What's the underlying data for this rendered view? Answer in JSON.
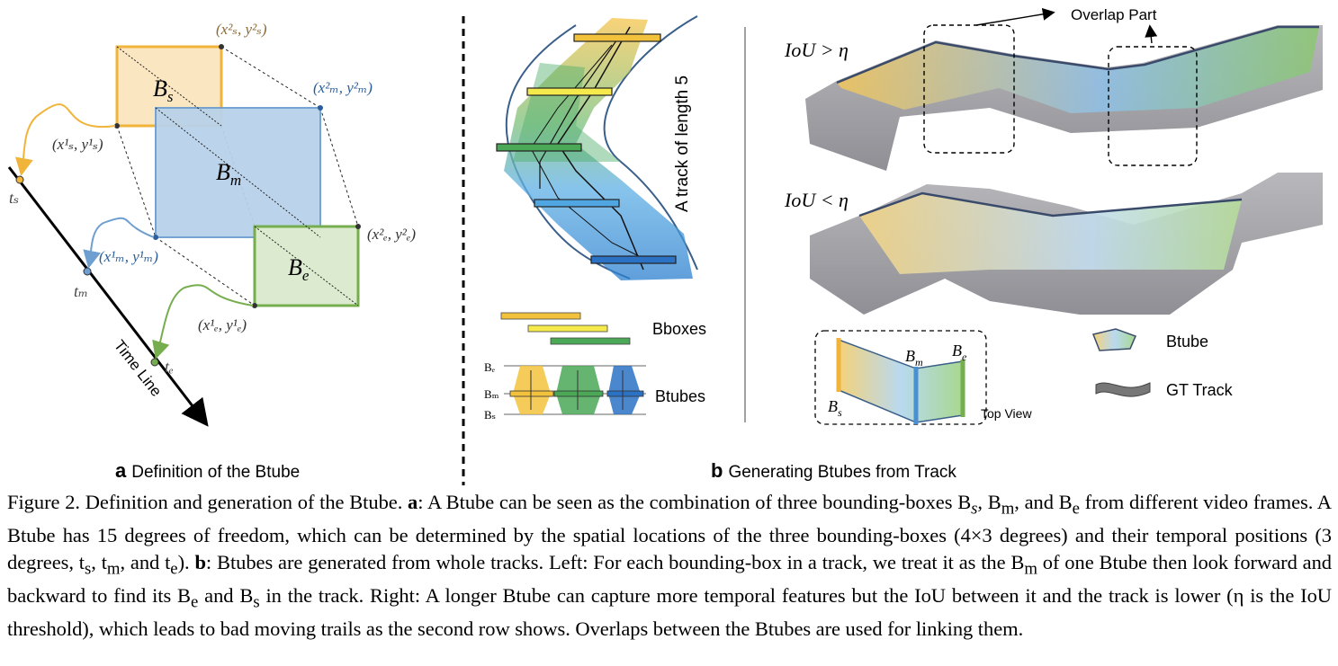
{
  "panel_a": {
    "caption_letter": "a",
    "caption_text": "Definition of the Btube",
    "box_labels": {
      "start": "B",
      "start_sub": "s",
      "mid": "B",
      "mid_sub": "m",
      "end": "B",
      "end_sub": "e"
    },
    "corner_labels": {
      "s2": "(x²ₛ, y²ₛ)",
      "s1": "(x¹ₛ, y¹ₛ)",
      "m2": "(x²ₘ, y²ₘ)",
      "m1": "(x¹ₘ, y¹ₘ)",
      "e2": "(x²ₑ, y²ₑ)",
      "e1": "(x¹ₑ, y¹ₑ)"
    },
    "time_labels": {
      "ts": "tₛ",
      "tm": "tₘ",
      "te": "tₑ"
    },
    "timeline_label": "Time Line",
    "colors": {
      "start": "#f0b43a",
      "mid": "#6e9fd0",
      "end": "#76ad4f"
    }
  },
  "panel_b": {
    "caption_letter": "b",
    "caption_text": "Generating Btubes from Track",
    "track_label": "A track of length 5",
    "bboxes_label": "Bboxes",
    "btubes_label": "Btubes",
    "btube_axis_labels": {
      "be": "Bₑ",
      "bm": "Bₘ",
      "bs": "Bₛ"
    },
    "overlap_label": "Overlap Part",
    "iou_greater": "IoU > η",
    "iou_less": "IoU < η",
    "topview_label": "Top View",
    "topview_box_labels": {
      "bs": "B",
      "bs_sub": "s",
      "bm": "B",
      "bm_sub": "m",
      "be": "B",
      "be_sub": "e"
    },
    "legend": [
      {
        "icon": "btube-icon",
        "label": "Btube"
      },
      {
        "icon": "gt-track-icon",
        "label": "GT Track"
      }
    ]
  },
  "caption": {
    "prefix": "Figure 2.",
    "part1": " Definition and generation of the Btube. ",
    "a_lab": "a",
    "part2": ": A Btube can be seen as the combination of three bounding-boxes B",
    "part2b": "s",
    "part2c": ", B",
    "part2d": "m",
    "part2e": ", and B",
    "part2f": "e",
    "part3": " from different video frames. A Btube has 15 degrees of freedom, which can be determined by the spatial locations of the three bounding-boxes (4×3 degrees) and their temporal positions (3 degrees, t",
    "part3b": "s",
    "part3c": ", t",
    "part3d": "m",
    "part3e": ", and t",
    "part3f": "e",
    "part3g": "). ",
    "b_lab": "b",
    "part4": ": Btubes are generated from whole tracks. Left: For each bounding-box in a track, we treat it as the B",
    "part4b": "m",
    "part4c": " of one Btube then look forward and backward to find its B",
    "part4d": "e",
    "part4e": " and B",
    "part4f": "s",
    "part5": " in the track. Right: A longer Btube can capture more temporal features but the IoU between it and the track is lower (η is the IoU threshold), which leads to bad moving trails as the second row shows. Overlaps between the Btubes are used for linking them."
  }
}
